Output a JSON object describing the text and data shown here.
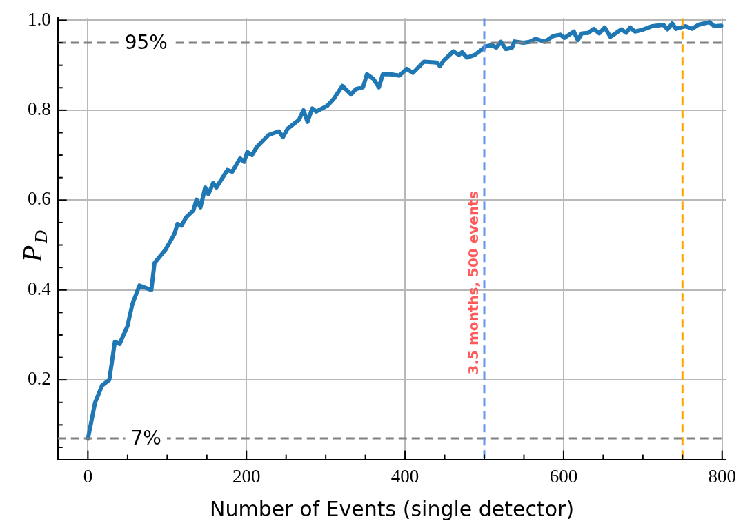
{
  "chart_data": {
    "type": "line",
    "xlabel": "Number of Events (single detector)",
    "ylabel": "P$_{D}$",
    "series": [
      {
        "color": "#1f77b4",
        "x": [
          0,
          9,
          18,
          27,
          34,
          40,
          50,
          56,
          65,
          80,
          84,
          98,
          109,
          113,
          118,
          124,
          133,
          137,
          142,
          148,
          152,
          158,
          162,
          176,
          182,
          192,
          197,
          201,
          207,
          213,
          228,
          241,
          246,
          252,
          266,
          272,
          277,
          283,
          288,
          302,
          310,
          321,
          332,
          338,
          347,
          352,
          360,
          367,
          372,
          382,
          393,
          402,
          410,
          424,
          440,
          444,
          449,
          461,
          468,
          472,
          478,
          488,
          502,
          510,
          515,
          521,
          527,
          535,
          538,
          549,
          557,
          565,
          576,
          587,
          596,
          601,
          613,
          618,
          623,
          631,
          638,
          645,
          652,
          659,
          673,
          679,
          684,
          690,
          698,
          712,
          726,
          731,
          737,
          742,
          754,
          762,
          770,
          784,
          790,
          799
        ],
        "values": [
          0.069,
          0.149,
          0.188,
          0.2,
          0.285,
          0.28,
          0.32,
          0.368,
          0.41,
          0.4,
          0.46,
          0.49,
          0.524,
          0.547,
          0.543,
          0.562,
          0.577,
          0.601,
          0.584,
          0.628,
          0.613,
          0.638,
          0.628,
          0.667,
          0.663,
          0.693,
          0.685,
          0.707,
          0.7,
          0.718,
          0.745,
          0.753,
          0.74,
          0.759,
          0.778,
          0.8,
          0.774,
          0.804,
          0.797,
          0.81,
          0.825,
          0.854,
          0.835,
          0.847,
          0.851,
          0.88,
          0.87,
          0.851,
          0.88,
          0.88,
          0.877,
          0.892,
          0.883,
          0.908,
          0.906,
          0.898,
          0.911,
          0.931,
          0.923,
          0.929,
          0.917,
          0.923,
          0.942,
          0.945,
          0.939,
          0.952,
          0.936,
          0.939,
          0.953,
          0.95,
          0.952,
          0.959,
          0.952,
          0.965,
          0.968,
          0.961,
          0.975,
          0.956,
          0.971,
          0.972,
          0.981,
          0.971,
          0.984,
          0.963,
          0.98,
          0.972,
          0.984,
          0.975,
          0.978,
          0.987,
          0.99,
          0.98,
          0.993,
          0.981,
          0.987,
          0.981,
          0.99,
          0.996,
          0.987,
          0.988
        ]
      }
    ],
    "xlim": [
      -38,
      805
    ],
    "ylim": [
      0.023,
      1.005
    ],
    "xticks": [
      0,
      {
        "value": 50,
        "label": null
      },
      200,
      {
        "value": 100,
        "label": null
      },
      {
        "value": 150,
        "label": null
      },
      {
        "value": 250,
        "label": null
      },
      {
        "value": 300,
        "label": null
      },
      {
        "value": 350,
        "label": null
      },
      400,
      {
        "value": 450,
        "label": null
      },
      {
        "value": 500,
        "label": null
      },
      {
        "value": 550,
        "label": null
      },
      600,
      {
        "value": 650,
        "label": null
      },
      {
        "value": 700,
        "label": null
      },
      {
        "value": 750,
        "label": null
      },
      800
    ],
    "yticks": [
      {
        "value": 0.05,
        "label": null
      },
      {
        "value": 0.1,
        "label": null
      },
      {
        "value": 0.15,
        "label": null
      },
      0.2,
      {
        "value": 0.25,
        "label": null
      },
      {
        "value": 0.3,
        "label": null
      },
      {
        "value": 0.35,
        "label": null
      },
      0.4,
      {
        "value": 0.45,
        "label": null
      },
      {
        "value": 0.5,
        "label": null
      },
      {
        "value": 0.55,
        "label": null
      },
      0.6,
      {
        "value": 0.65,
        "label": null
      },
      {
        "value": 0.7,
        "label": null
      },
      {
        "value": 0.75,
        "label": null
      },
      0.8,
      {
        "value": 0.85,
        "label": null
      },
      {
        "value": 0.9,
        "label": null
      },
      {
        "value": 0.95,
        "label": null
      },
      {
        "value": 1,
        "label": "1.0"
      }
    ],
    "grid": true,
    "ref_lines": [
      {
        "axis": "y",
        "value": 0.95,
        "label": "95%",
        "color": "#808080",
        "line_style": "dashed"
      },
      {
        "axis": "y",
        "value": 0.07,
        "label": "7%",
        "color": "#808080",
        "line_style": "dashed"
      },
      {
        "axis": "x",
        "value": 500,
        "label": "3.5 months, 500 events",
        "color": "#6495ed",
        "line_style": "dashed"
      },
      {
        "axis": "x",
        "value": 750,
        "color": "#ffa500",
        "line_style": "dashed"
      }
    ]
  }
}
